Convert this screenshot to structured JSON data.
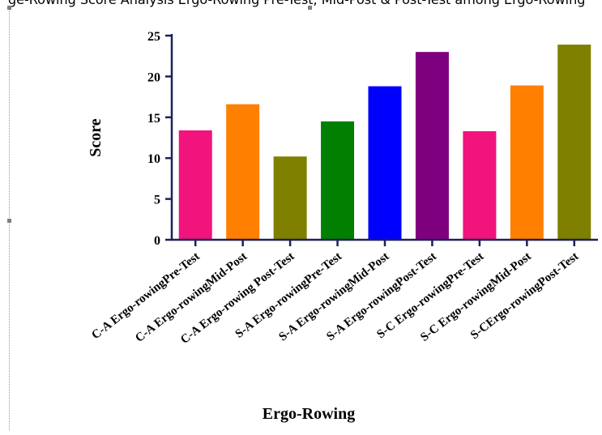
{
  "caption_fragment": "ge-Rowing Score Analysis Ergo-Rowing Pre-Test, Mid-Post & Post-Test among Ergo-Rowing",
  "chart_data": {
    "type": "bar",
    "categories": [
      "C-A  Ergo-rowingPre-Test",
      "C-A Ergo-rowingMid-Post",
      "C-A  Ergo-rowing Post-Test",
      "S-A  Ergo-rowingPre-Test",
      "S-A Ergo-rowingMid-Post",
      "S-A Ergo-rowingPost-Test",
      "S-C Ergo-rowingPre-Test",
      "S-C  Ergo-rowingMid-Post",
      "S-CErgo-rowingPost-Test"
    ],
    "values": [
      13.4,
      16.6,
      10.2,
      14.5,
      18.8,
      23.0,
      13.3,
      18.9,
      23.9
    ],
    "colors": [
      "#f0147c",
      "#ff7f00",
      "#7f7f00",
      "#007f00",
      "#0000ff",
      "#7f007f",
      "#f0147c",
      "#ff7f00",
      "#7f7f00"
    ],
    "yticks": [
      0,
      5,
      10,
      15,
      20,
      25
    ],
    "ylim": [
      0,
      25
    ],
    "xlabel": "Ergo-Rowing",
    "ylabel": "Score",
    "axis_color": "#1f1f5f",
    "grid": false,
    "legend": "none"
  }
}
